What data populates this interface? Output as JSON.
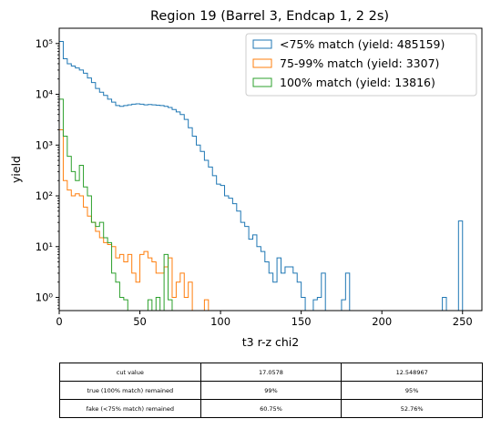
{
  "chart_data": {
    "type": "histogram",
    "title": "Region 19 (Barrel 3, Endcap 1, 2 2s)",
    "xlabel": "t3 r-z chi2",
    "ylabel": "yield",
    "xlim": [
      0,
      262
    ],
    "ylim": [
      0.55,
      200000
    ],
    "yscale": "log",
    "bin_width": 2.5,
    "x_ticks": [
      0,
      50,
      100,
      150,
      200,
      250
    ],
    "x_tick_labels": [
      "0",
      "50",
      "100",
      "150",
      "200",
      "250"
    ],
    "y_ticks": [
      1,
      10,
      100,
      1000,
      10000,
      100000
    ],
    "y_tick_labels": [
      "10⁰",
      "10¹",
      "10²",
      "10³",
      "10⁴",
      "10⁵"
    ],
    "grid": false,
    "legend_position": "top-right",
    "series": [
      {
        "name": "<75% match (yield: 485159)",
        "color": "#1f77b4",
        "values": [
          110000,
          50000,
          40000,
          36000,
          33000,
          30000,
          26000,
          21000,
          17000,
          13000,
          11000,
          9500,
          8000,
          7000,
          6000,
          5800,
          6000,
          6200,
          6400,
          6500,
          6400,
          6200,
          6300,
          6200,
          6100,
          6000,
          5800,
          5500,
          5000,
          4500,
          4000,
          3200,
          2200,
          1500,
          1000,
          750,
          500,
          370,
          250,
          170,
          160,
          100,
          90,
          70,
          50,
          30,
          25,
          14,
          17,
          10,
          8,
          5,
          3,
          2,
          6,
          3,
          4,
          4,
          3,
          2,
          1,
          0,
          0,
          0.9,
          1,
          3,
          0,
          0,
          0,
          0,
          0.9,
          3,
          0,
          0,
          0,
          0,
          0,
          0,
          0,
          0,
          0,
          0,
          0,
          0,
          0,
          0,
          0,
          0,
          0,
          0,
          0,
          0,
          0,
          0,
          0,
          1,
          0,
          0,
          0,
          32,
          0
        ]
      },
      {
        "name": "75-99% match (yield: 3307)",
        "color": "#ff7f0e",
        "values": [
          2000,
          200,
          130,
          100,
          110,
          100,
          60,
          40,
          30,
          20,
          15,
          12,
          11,
          10,
          6,
          7,
          5,
          7,
          3,
          2,
          7,
          8,
          6,
          5,
          3,
          3,
          4,
          6,
          1,
          2,
          3,
          1,
          2,
          0,
          0,
          0,
          0.9,
          0,
          0,
          0,
          0,
          0,
          0,
          0,
          0,
          0,
          0,
          0,
          0,
          0,
          0,
          0,
          0,
          0,
          0,
          0,
          0,
          0,
          0,
          0,
          0,
          0,
          0,
          0,
          0,
          0,
          0,
          0,
          0,
          0,
          0,
          0,
          0,
          0,
          0,
          0,
          0,
          0,
          0,
          0,
          0,
          0,
          0,
          0,
          0,
          0,
          0,
          0,
          0,
          0,
          0,
          0,
          0,
          0,
          0,
          0,
          0,
          0,
          0,
          0,
          0
        ]
      },
      {
        "name": "100% match (yield: 13816)",
        "color": "#2ca02c",
        "values": [
          8000,
          1500,
          600,
          300,
          200,
          400,
          150,
          100,
          30,
          25,
          30,
          15,
          12,
          3,
          2,
          1,
          0.9,
          0,
          0,
          0,
          0,
          0,
          0.9,
          0,
          1,
          0,
          7,
          0.9,
          0,
          0,
          0,
          0,
          0,
          0,
          0,
          0,
          0,
          0,
          0,
          0,
          0,
          0,
          0,
          0,
          0,
          0,
          0,
          0,
          0,
          0,
          0,
          0,
          0,
          0,
          0,
          0,
          0,
          0,
          0,
          0,
          0,
          0,
          0,
          0,
          0,
          0,
          0,
          0,
          0,
          0,
          0,
          0,
          0,
          0,
          0,
          0,
          0,
          0,
          0,
          0,
          0,
          0,
          0,
          0,
          0,
          0,
          0,
          0,
          0,
          0,
          0,
          0,
          0,
          0,
          0,
          0,
          0,
          0,
          0,
          0,
          0
        ]
      }
    ]
  },
  "table": {
    "rows": [
      [
        "cut value",
        "17.0578",
        "12.548967"
      ],
      [
        "true (100% match) remained",
        "99%",
        "95%"
      ],
      [
        "fake (<75% match) remained",
        "60.75%",
        "52.76%"
      ]
    ]
  }
}
